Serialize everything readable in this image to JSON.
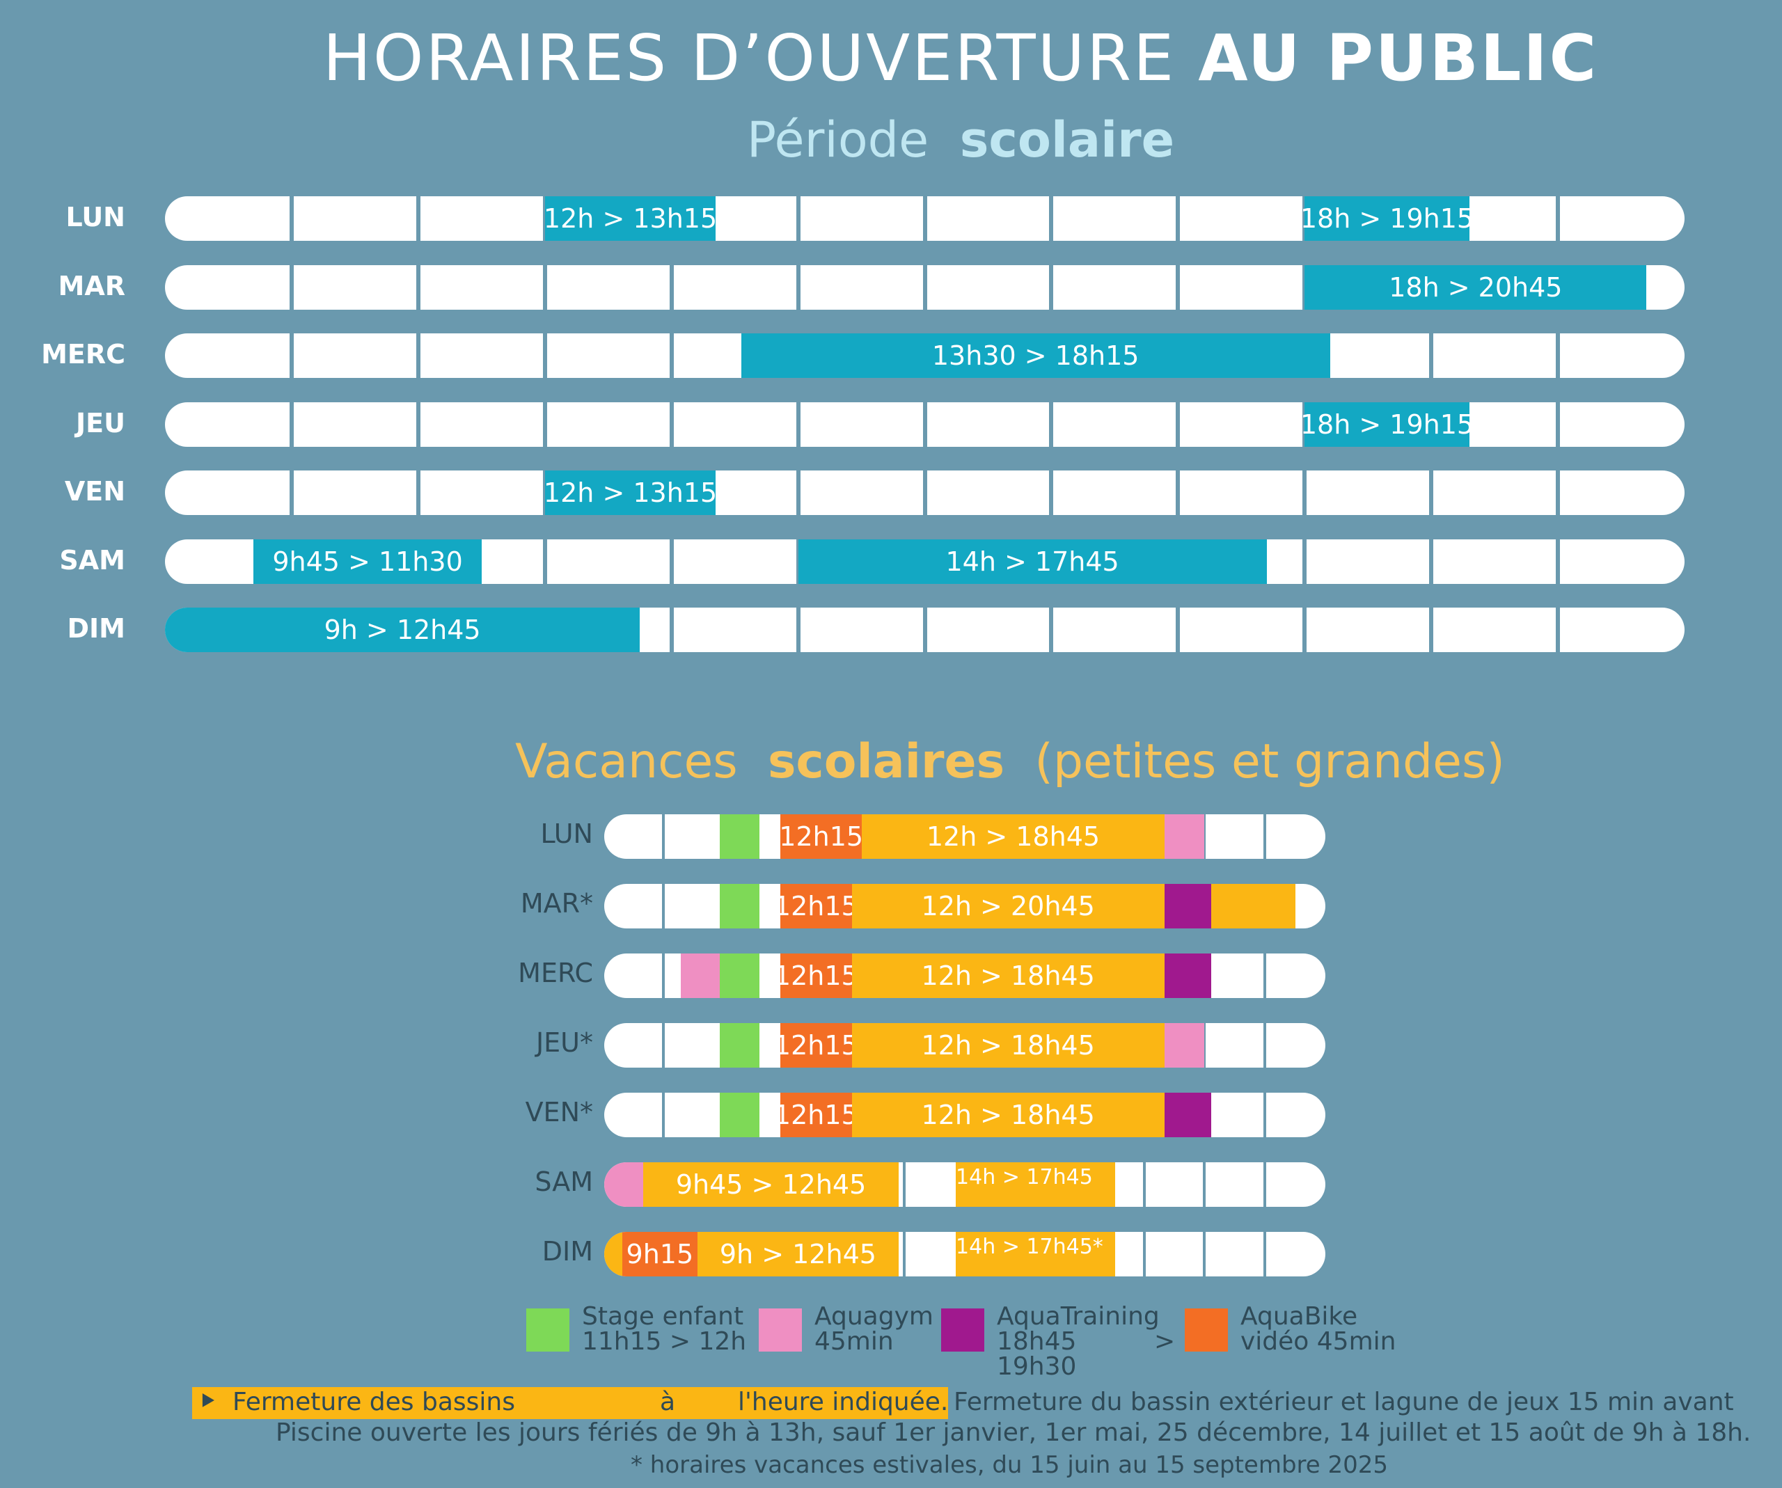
{
  "title": {
    "normal": "HORAIRES D’OUVERTURE",
    "bold": "AU PUBLIC"
  },
  "section1": {
    "title_normal": "Période",
    "title_bold": "scolaire",
    "rows": [
      {
        "day": "LUN",
        "segments": [
          {
            "start": 3,
            "end": 4.35,
            "label": "12h > 13h15"
          },
          {
            "start": 9,
            "end": 10.3,
            "label": "18h > 19h15"
          }
        ]
      },
      {
        "day": "MAR",
        "segments": [
          {
            "start": 9,
            "end": 11.7,
            "label": "18h > 20h45"
          }
        ]
      },
      {
        "day": "MERC",
        "segments": [
          {
            "start": 4.55,
            "end": 9.2,
            "label": "13h30 > 18h15"
          }
        ]
      },
      {
        "day": "JEU",
        "segments": [
          {
            "start": 9,
            "end": 10.3,
            "label": "18h > 19h15"
          }
        ]
      },
      {
        "day": "VEN",
        "segments": [
          {
            "start": 3,
            "end": 4.35,
            "label": "12h > 13h15"
          }
        ]
      },
      {
        "day": "SAM",
        "segments": [
          {
            "start": 0.7,
            "end": 2.5,
            "label": "9h45 > 11h30"
          },
          {
            "start": 5,
            "end": 8.7,
            "label": "14h > 17h45"
          }
        ]
      },
      {
        "day": "DIM",
        "segments": [
          {
            "start": 0,
            "end": 3.75,
            "label": "9h > 12h45"
          }
        ]
      }
    ]
  },
  "section2": {
    "title_normal": "Vacances",
    "title_bold": "scolaires",
    "title_suffix": "(petites et grandes)",
    "rows": [
      {
        "day": "LUN",
        "segments": [
          {
            "start": 1.92,
            "end": 2.58,
            "type": "stage",
            "label": ""
          },
          {
            "start": 2.93,
            "end": 4.29,
            "type": "aquabike",
            "label": "12h15"
          },
          {
            "start": 4.29,
            "end": 9.32,
            "type": "orange",
            "label": "12h > 18h45"
          },
          {
            "start": 9.32,
            "end": 9.98,
            "type": "aquagym",
            "label": ""
          }
        ]
      },
      {
        "day": "MAR*",
        "segments": [
          {
            "start": 1.92,
            "end": 2.58,
            "type": "stage",
            "label": ""
          },
          {
            "start": 2.93,
            "end": 4.12,
            "type": "aquabike",
            "label": "12h15"
          },
          {
            "start": 4.12,
            "end": 9.32,
            "type": "orange",
            "label": "12h > 20h45"
          },
          {
            "start": 9.32,
            "end": 10.1,
            "type": "aquatraining",
            "label": ""
          },
          {
            "start": 10.1,
            "end": 11.5,
            "type": "orange",
            "label": ""
          }
        ]
      },
      {
        "day": "MERC",
        "segments": [
          {
            "start": 1.27,
            "end": 1.92,
            "type": "aquagym",
            "label": ""
          },
          {
            "start": 1.92,
            "end": 2.58,
            "type": "stage",
            "label": ""
          },
          {
            "start": 2.93,
            "end": 4.12,
            "type": "aquabike",
            "label": "12h15"
          },
          {
            "start": 4.12,
            "end": 9.32,
            "type": "orange",
            "label": "12h > 18h45"
          },
          {
            "start": 9.32,
            "end": 10.1,
            "type": "aquatraining",
            "label": ""
          }
        ]
      },
      {
        "day": "JEU*",
        "segments": [
          {
            "start": 1.92,
            "end": 2.58,
            "type": "stage",
            "label": ""
          },
          {
            "start": 2.93,
            "end": 4.12,
            "type": "aquabike",
            "label": "12h15"
          },
          {
            "start": 4.12,
            "end": 9.32,
            "type": "orange",
            "label": "12h > 18h45"
          },
          {
            "start": 9.32,
            "end": 9.98,
            "type": "aquagym",
            "label": ""
          }
        ]
      },
      {
        "day": "VEN*",
        "segments": [
          {
            "start": 1.92,
            "end": 2.58,
            "type": "stage",
            "label": ""
          },
          {
            "start": 2.93,
            "end": 4.12,
            "type": "aquabike",
            "label": "12h15"
          },
          {
            "start": 4.12,
            "end": 9.32,
            "type": "orange",
            "label": "12h > 18h45"
          },
          {
            "start": 9.32,
            "end": 10.1,
            "type": "aquatraining",
            "label": ""
          }
        ]
      },
      {
        "day": "SAM",
        "segments": [
          {
            "start": 0,
            "end": 0.65,
            "type": "aquagym",
            "label": ""
          },
          {
            "start": 0.65,
            "end": 4.9,
            "type": "orange",
            "label": "9h45 > 12h45"
          },
          {
            "start": 5.85,
            "end": 8.5,
            "type": "orange",
            "label": "14h > 17h45"
          }
        ]
      },
      {
        "day": "DIM",
        "segments": [
          {
            "start": 0,
            "end": 0.3,
            "type": "orange",
            "label": ""
          },
          {
            "start": 0.3,
            "end": 1.55,
            "type": "aquabike",
            "label": "9h15"
          },
          {
            "start": 1.55,
            "end": 4.9,
            "type": "orange",
            "label": "9h > 12h45"
          },
          {
            "start": 5.85,
            "end": 8.5,
            "type": "orange",
            "label": "14h > 17h45*"
          }
        ]
      }
    ]
  },
  "colors": {
    "teal": "#13a8c3",
    "stage": "#7ed957",
    "aquagym": "#ef8fc2",
    "aquatraining": "#a0198e",
    "aquabike": "#f36e24",
    "orange": "#fbb614",
    "background": "#6a99ae"
  },
  "legend": [
    {
      "type": "stage",
      "line1": "Stage enfant",
      "line2": "11h15 > 12h",
      "line3": ""
    },
    {
      "type": "aquagym",
      "line1": "Aquagym",
      "line2": "45min",
      "line3": ""
    },
    {
      "type": "aquatraining",
      "line1": "AquaTraining",
      "line2": "18h45",
      "line3": "19h30",
      "arrow": ">"
    },
    {
      "type": "aquabike",
      "line1": "AquaBike",
      "line2": "vidéo 45min",
      "line3": ""
    }
  ],
  "footer": {
    "highlight_part1": "Fermeture des bassins",
    "highlight_part2": "à",
    "highlight_part3": "l'heure indiquée.",
    "line1_rest": "Fermeture du bassin extérieur et lagune de jeux 15 min avant",
    "line2": "Piscine ouverte les jours fériés de 9h à 13h, sauf 1er janvier, 1er mai, 25 décembre, 14 juillet et 15 août de 9h à 18h.",
    "line3": "* horaires vacances estivales, du 15 juin au 15 septembre 2025"
  }
}
